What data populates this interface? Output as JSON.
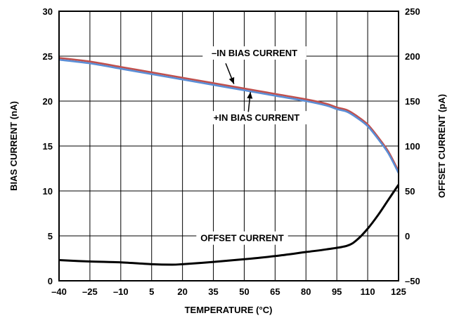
{
  "chart_data": {
    "type": "line",
    "title": "",
    "xlabel": "TEMPERATURE (°C)",
    "ylabel": "BIAS CURRENT (nA)",
    "y2label": "OFFSET CURRENT (pA)",
    "xlim": [
      -40,
      125
    ],
    "ylim": [
      0,
      30
    ],
    "y2lim": [
      -50,
      250
    ],
    "grid": true,
    "x_ticks": [
      -40,
      -25,
      -10,
      5,
      20,
      35,
      50,
      65,
      80,
      95,
      110,
      125
    ],
    "y_ticks": [
      0,
      5,
      10,
      15,
      20,
      25,
      30
    ],
    "y2_ticks": [
      -50,
      0,
      50,
      100,
      150,
      200,
      250
    ],
    "series": [
      {
        "name": "–IN BIAS CURRENT",
        "axis": "left",
        "color": "#c0504d",
        "x": [
          -40,
          -25,
          -10,
          5,
          20,
          35,
          50,
          65,
          80,
          90,
          95,
          100,
          105,
          110,
          115,
          120,
          125
        ],
        "y": [
          24.8,
          24.4,
          23.8,
          23.2,
          22.6,
          22.0,
          21.4,
          20.8,
          20.2,
          19.7,
          19.3,
          19.0,
          18.3,
          17.4,
          16.0,
          14.4,
          12.2
        ]
      },
      {
        "name": "+IN BIAS CURRENT",
        "axis": "left",
        "color": "#5b8ed6",
        "x": [
          -40,
          -25,
          -10,
          5,
          20,
          35,
          50,
          65,
          80,
          90,
          95,
          100,
          105,
          110,
          115,
          120,
          125
        ],
        "y": [
          24.6,
          24.2,
          23.6,
          23.0,
          22.4,
          21.8,
          21.2,
          20.6,
          20.0,
          19.5,
          19.1,
          18.8,
          18.1,
          17.2,
          15.8,
          14.2,
          12.0
        ]
      },
      {
        "name": "OFFSET CURRENT",
        "axis": "right",
        "color": "#000000",
        "x": [
          -40,
          -25,
          -10,
          5,
          15,
          20,
          35,
          50,
          65,
          80,
          90,
          100,
          105,
          110,
          115,
          120,
          125
        ],
        "y": [
          -27,
          -28.5,
          -29.5,
          -31.5,
          -32,
          -31.5,
          -29,
          -26,
          -22.5,
          -18,
          -15,
          -11,
          -4,
          8,
          23,
          40,
          57
        ]
      }
    ],
    "annotations": [
      {
        "text": "–IN BIAS CURRENT"
      },
      {
        "text": "+IN BIAS CURRENT"
      },
      {
        "text": "OFFSET CURRENT"
      }
    ]
  }
}
